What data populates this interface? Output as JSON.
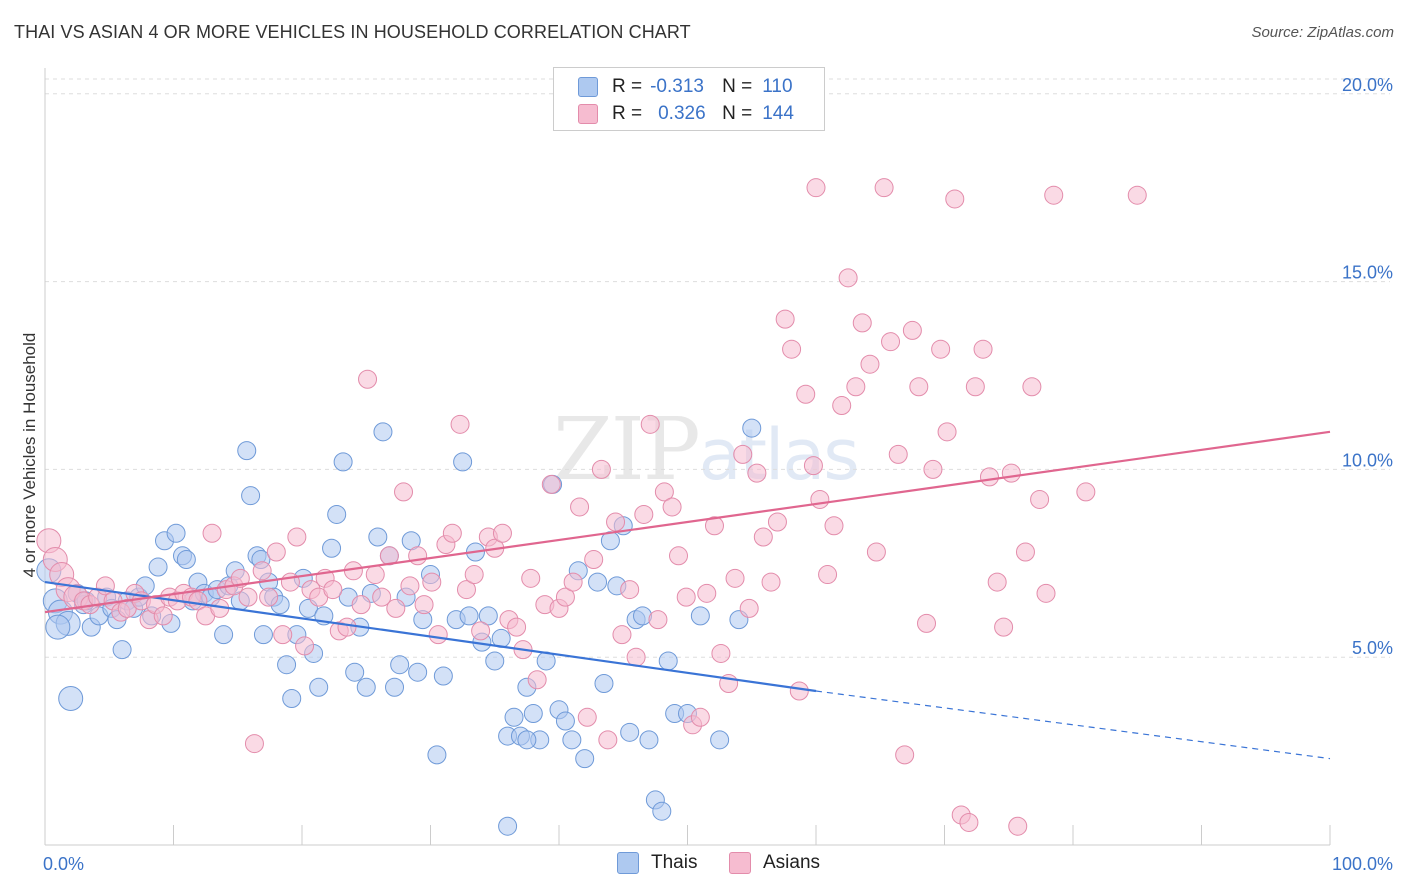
{
  "title": "THAI VS ASIAN 4 OR MORE VEHICLES IN HOUSEHOLD CORRELATION CHART",
  "source": "Source: ZipAtlas.com",
  "watermark": {
    "zip": "ZIP",
    "atlas": "atlas"
  },
  "legend": {
    "r_label": "R =",
    "n_label": "N =",
    "thais": {
      "r": "-0.313",
      "n": "110"
    },
    "asians": {
      "r": "0.326",
      "n": "144"
    }
  },
  "bottom_legend": {
    "thais": "Thais",
    "asians": "Asians"
  },
  "colors": {
    "thais_fill": "#aec9f0",
    "thais_stroke": "#6f9ad8",
    "thais_line": "#3a74d6",
    "asians_fill": "#f6bcd0",
    "asians_stroke": "#e38cab",
    "asians_line": "#e0668f",
    "tick": "#3b73c8"
  },
  "chart_data": {
    "type": "scatter",
    "title": "THAI VS ASIAN 4 OR MORE VEHICLES IN HOUSEHOLD CORRELATION CHART",
    "xlabel": "",
    "ylabel": "4 or more Vehicles in Household",
    "xlim": [
      0,
      100
    ],
    "ylim": [
      0,
      20.5
    ],
    "x_tick_labels": [
      "0.0%",
      "100.0%"
    ],
    "y_ticks": [
      5,
      10,
      15,
      20
    ],
    "y_tick_labels": [
      "5.0%",
      "10.0%",
      "15.0%",
      "20.0%"
    ],
    "series": [
      {
        "name": "Thais",
        "trend": {
          "x0": 0,
          "y0": 7.0,
          "x1": 60,
          "y1": 4.1,
          "dash_to_x": 100,
          "dash_to_y": 2.3
        },
        "points": [
          [
            0.3,
            7.3
          ],
          [
            0.8,
            6.5
          ],
          [
            1.2,
            6.2
          ],
          [
            1.8,
            5.9
          ],
          [
            2.5,
            6.7
          ],
          [
            3.0,
            6.4
          ],
          [
            3.6,
            5.8
          ],
          [
            4.2,
            6.1
          ],
          [
            4.8,
            6.6
          ],
          [
            5.2,
            6.3
          ],
          [
            5.6,
            6.0
          ],
          [
            6.0,
            5.2
          ],
          [
            6.4,
            6.5
          ],
          [
            6.9,
            6.3
          ],
          [
            7.3,
            6.6
          ],
          [
            7.8,
            6.9
          ],
          [
            8.3,
            6.1
          ],
          [
            8.8,
            7.4
          ],
          [
            9.3,
            8.1
          ],
          [
            9.8,
            5.9
          ],
          [
            10.2,
            8.3
          ],
          [
            10.7,
            7.7
          ],
          [
            11.0,
            7.6
          ],
          [
            11.5,
            6.5
          ],
          [
            11.9,
            7.0
          ],
          [
            12.4,
            6.7
          ],
          [
            12.9,
            6.6
          ],
          [
            13.4,
            6.8
          ],
          [
            13.9,
            5.6
          ],
          [
            14.3,
            6.9
          ],
          [
            14.8,
            7.3
          ],
          [
            15.2,
            6.5
          ],
          [
            15.7,
            10.5
          ],
          [
            16.0,
            9.3
          ],
          [
            16.5,
            7.7
          ],
          [
            17.0,
            5.6
          ],
          [
            17.4,
            7.0
          ],
          [
            17.8,
            6.6
          ],
          [
            18.3,
            6.4
          ],
          [
            18.8,
            4.8
          ],
          [
            19.2,
            3.9
          ],
          [
            19.6,
            5.6
          ],
          [
            20.1,
            7.1
          ],
          [
            20.5,
            6.3
          ],
          [
            20.9,
            5.1
          ],
          [
            21.3,
            4.2
          ],
          [
            21.7,
            6.1
          ],
          [
            22.3,
            7.9
          ],
          [
            22.7,
            8.8
          ],
          [
            23.2,
            10.2
          ],
          [
            23.6,
            6.6
          ],
          [
            24.1,
            4.6
          ],
          [
            24.5,
            5.8
          ],
          [
            25.0,
            4.2
          ],
          [
            25.4,
            6.7
          ],
          [
            25.9,
            8.2
          ],
          [
            26.3,
            11.0
          ],
          [
            26.8,
            7.7
          ],
          [
            27.2,
            4.2
          ],
          [
            27.6,
            4.8
          ],
          [
            28.1,
            6.6
          ],
          [
            28.5,
            8.1
          ],
          [
            29.0,
            4.6
          ],
          [
            29.4,
            6.0
          ],
          [
            30.0,
            7.2
          ],
          [
            30.5,
            2.4
          ],
          [
            31.0,
            4.5
          ],
          [
            32.0,
            6.0
          ],
          [
            32.5,
            10.2
          ],
          [
            33.0,
            6.1
          ],
          [
            33.5,
            7.8
          ],
          [
            34.0,
            5.4
          ],
          [
            34.5,
            6.1
          ],
          [
            35.0,
            4.9
          ],
          [
            35.5,
            5.5
          ],
          [
            36.0,
            2.9
          ],
          [
            36.5,
            3.4
          ],
          [
            37.0,
            2.9
          ],
          [
            37.5,
            4.2
          ],
          [
            38.0,
            3.5
          ],
          [
            38.5,
            2.8
          ],
          [
            39.0,
            4.9
          ],
          [
            39.5,
            9.6
          ],
          [
            40.0,
            3.6
          ],
          [
            40.5,
            3.3
          ],
          [
            41.0,
            2.8
          ],
          [
            41.5,
            7.3
          ],
          [
            42.0,
            2.3
          ],
          [
            43.0,
            7.0
          ],
          [
            43.5,
            4.3
          ],
          [
            44.0,
            8.1
          ],
          [
            44.5,
            6.9
          ],
          [
            45.0,
            8.5
          ],
          [
            45.5,
            3.0
          ],
          [
            46.0,
            6.0
          ],
          [
            46.5,
            6.1
          ],
          [
            47.0,
            2.8
          ],
          [
            47.5,
            1.2
          ],
          [
            48.0,
            0.9
          ],
          [
            48.5,
            4.9
          ],
          [
            49.0,
            3.5
          ],
          [
            50.0,
            3.5
          ],
          [
            51.0,
            6.1
          ],
          [
            52.5,
            2.8
          ],
          [
            54.0,
            6.0
          ],
          [
            55.0,
            11.1
          ],
          [
            36.0,
            0.5
          ],
          [
            37.5,
            2.8
          ],
          [
            1.0,
            5.8
          ],
          [
            2.0,
            3.9
          ],
          [
            16.8,
            7.6
          ],
          [
            3.2,
            6.5
          ]
        ]
      },
      {
        "name": "Asians",
        "trend": {
          "x0": 0,
          "y0": 6.2,
          "x1": 100,
          "y1": 11.0
        },
        "points": [
          [
            0.3,
            8.1
          ],
          [
            0.8,
            7.6
          ],
          [
            1.3,
            7.2
          ],
          [
            1.8,
            6.8
          ],
          [
            2.4,
            6.6
          ],
          [
            3.0,
            6.5
          ],
          [
            3.5,
            6.4
          ],
          [
            4.1,
            6.6
          ],
          [
            4.7,
            6.9
          ],
          [
            5.3,
            6.5
          ],
          [
            5.9,
            6.2
          ],
          [
            6.4,
            6.3
          ],
          [
            7.0,
            6.7
          ],
          [
            7.5,
            6.5
          ],
          [
            8.1,
            6.0
          ],
          [
            8.6,
            6.4
          ],
          [
            9.2,
            6.1
          ],
          [
            9.7,
            6.6
          ],
          [
            10.3,
            6.5
          ],
          [
            10.8,
            6.7
          ],
          [
            11.4,
            6.6
          ],
          [
            11.9,
            6.5
          ],
          [
            12.5,
            6.1
          ],
          [
            13.0,
            8.3
          ],
          [
            13.6,
            6.3
          ],
          [
            14.1,
            6.8
          ],
          [
            14.7,
            6.9
          ],
          [
            15.2,
            7.1
          ],
          [
            15.8,
            6.6
          ],
          [
            16.3,
            2.7
          ],
          [
            16.9,
            7.3
          ],
          [
            17.4,
            6.6
          ],
          [
            18.0,
            7.8
          ],
          [
            18.5,
            5.6
          ],
          [
            19.1,
            7.0
          ],
          [
            19.6,
            8.2
          ],
          [
            20.2,
            5.3
          ],
          [
            20.7,
            6.8
          ],
          [
            21.3,
            6.6
          ],
          [
            21.8,
            7.1
          ],
          [
            22.4,
            6.8
          ],
          [
            22.9,
            5.7
          ],
          [
            23.5,
            5.8
          ],
          [
            24.0,
            7.3
          ],
          [
            24.6,
            6.4
          ],
          [
            25.1,
            12.4
          ],
          [
            25.7,
            7.2
          ],
          [
            26.2,
            6.6
          ],
          [
            26.8,
            7.7
          ],
          [
            27.3,
            6.3
          ],
          [
            27.9,
            9.4
          ],
          [
            28.4,
            6.9
          ],
          [
            29.0,
            7.7
          ],
          [
            29.5,
            6.4
          ],
          [
            30.1,
            7.0
          ],
          [
            30.6,
            5.6
          ],
          [
            31.2,
            8.0
          ],
          [
            31.7,
            8.3
          ],
          [
            32.3,
            11.2
          ],
          [
            32.8,
            6.8
          ],
          [
            33.4,
            7.2
          ],
          [
            33.9,
            5.7
          ],
          [
            34.5,
            8.2
          ],
          [
            35.0,
            7.9
          ],
          [
            35.6,
            8.3
          ],
          [
            36.1,
            6.0
          ],
          [
            36.7,
            5.8
          ],
          [
            37.2,
            5.2
          ],
          [
            37.8,
            7.1
          ],
          [
            38.3,
            4.4
          ],
          [
            38.9,
            6.4
          ],
          [
            39.4,
            9.6
          ],
          [
            40.0,
            6.3
          ],
          [
            40.5,
            6.6
          ],
          [
            41.1,
            7.0
          ],
          [
            41.6,
            9.0
          ],
          [
            42.2,
            3.4
          ],
          [
            42.7,
            7.6
          ],
          [
            43.3,
            10.0
          ],
          [
            43.8,
            2.8
          ],
          [
            44.4,
            8.6
          ],
          [
            44.9,
            5.6
          ],
          [
            45.5,
            6.8
          ],
          [
            46.0,
            5.0
          ],
          [
            46.6,
            8.8
          ],
          [
            47.1,
            11.2
          ],
          [
            47.7,
            6.0
          ],
          [
            48.2,
            9.4
          ],
          [
            48.8,
            9.0
          ],
          [
            49.3,
            7.7
          ],
          [
            49.9,
            6.6
          ],
          [
            50.4,
            3.2
          ],
          [
            51.0,
            3.4
          ],
          [
            51.5,
            6.7
          ],
          [
            52.1,
            8.5
          ],
          [
            52.6,
            5.1
          ],
          [
            53.2,
            4.3
          ],
          [
            53.7,
            7.1
          ],
          [
            54.3,
            10.4
          ],
          [
            54.8,
            6.3
          ],
          [
            55.4,
            9.9
          ],
          [
            55.9,
            8.2
          ],
          [
            56.5,
            7.0
          ],
          [
            57.0,
            8.6
          ],
          [
            57.6,
            14.0
          ],
          [
            58.1,
            13.2
          ],
          [
            58.7,
            4.1
          ],
          [
            59.2,
            12.0
          ],
          [
            59.8,
            10.1
          ],
          [
            60.3,
            9.2
          ],
          [
            60.9,
            7.2
          ],
          [
            61.4,
            8.5
          ],
          [
            62.0,
            11.7
          ],
          [
            62.5,
            15.1
          ],
          [
            63.1,
            12.2
          ],
          [
            63.6,
            13.9
          ],
          [
            64.2,
            12.8
          ],
          [
            64.7,
            7.8
          ],
          [
            65.3,
            17.5
          ],
          [
            65.8,
            13.4
          ],
          [
            66.4,
            10.4
          ],
          [
            66.9,
            2.4
          ],
          [
            67.5,
            13.7
          ],
          [
            68.0,
            12.2
          ],
          [
            68.6,
            5.9
          ],
          [
            69.1,
            10.0
          ],
          [
            69.7,
            13.2
          ],
          [
            70.2,
            11.0
          ],
          [
            70.8,
            17.2
          ],
          [
            71.3,
            0.8
          ],
          [
            71.9,
            0.6
          ],
          [
            72.4,
            12.2
          ],
          [
            73.0,
            13.2
          ],
          [
            73.5,
            9.8
          ],
          [
            74.1,
            7.0
          ],
          [
            74.6,
            5.8
          ],
          [
            75.2,
            9.9
          ],
          [
            75.7,
            0.5
          ],
          [
            76.3,
            7.8
          ],
          [
            76.8,
            12.2
          ],
          [
            77.4,
            9.2
          ],
          [
            77.9,
            6.7
          ],
          [
            78.5,
            17.3
          ],
          [
            81.0,
            9.4
          ],
          [
            85.0,
            17.3
          ],
          [
            60.0,
            17.5
          ]
        ]
      }
    ]
  }
}
